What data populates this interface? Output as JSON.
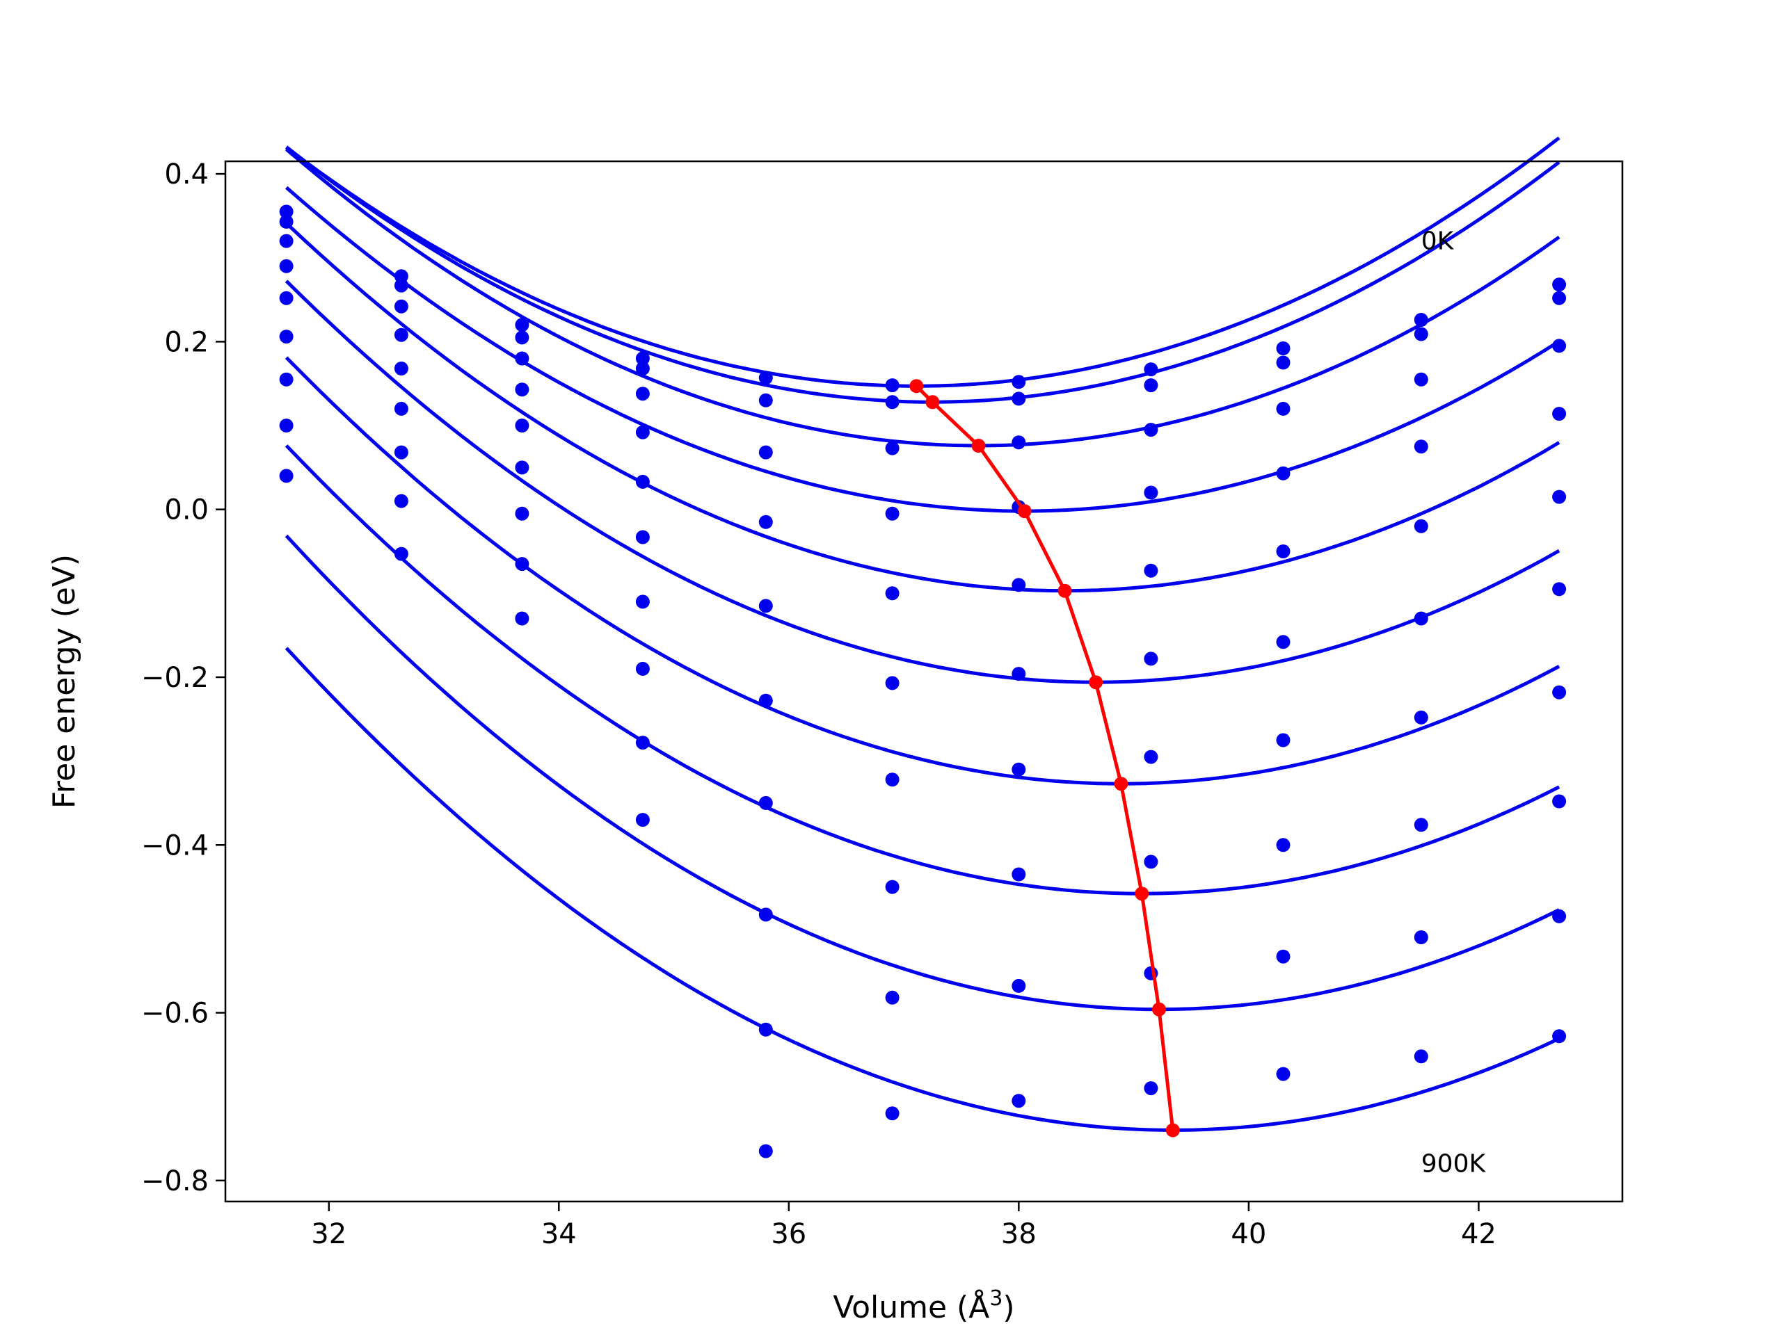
{
  "chart_data": {
    "type": "scatter",
    "title": "",
    "xlabel": "Volume (Å",
    "xlabel_sup": "3",
    "xlabel_close": ")",
    "ylabel": "Free energy (eV)",
    "xlim": [
      31.1,
      43.25
    ],
    "ylim": [
      -0.825,
      0.415
    ],
    "xticks": [
      32,
      34,
      36,
      38,
      40,
      42
    ],
    "yticks": [
      0.4,
      0.2,
      0.0,
      -0.2,
      -0.4,
      -0.6,
      -0.8
    ],
    "ytick_labels": [
      "0.4",
      "0.2",
      "0.0",
      "−0.2",
      "−0.4",
      "−0.6",
      "−0.8"
    ],
    "annotations": [
      {
        "text": "0K",
        "x": 41.5,
        "y": 0.32
      },
      {
        "text": "900K",
        "x": 41.5,
        "y": -0.78
      }
    ],
    "grid": false,
    "colors": {
      "points": "#0000ee",
      "curves": "#0000ee",
      "minima": "#ff0000"
    },
    "point_x": [
      31.63,
      32.63,
      33.68,
      34.73,
      35.8,
      36.9,
      38.0,
      39.15,
      40.3,
      41.5,
      42.7
    ],
    "series": [
      {
        "points_y": [
          0.355,
          0.278,
          0.22,
          0.18,
          0.157,
          0.148,
          0.152,
          0.167,
          0.192,
          0.226,
          0.268
        ],
        "curve": {
          "x_start": 31.63,
          "x_end": 42.7,
          "a": 0.00947,
          "x_min": 37.11,
          "y_min": 0.147
        },
        "min": [
          37.11,
          0.147
        ]
      },
      {
        "points_y": [
          0.343,
          0.267,
          0.205,
          0.168,
          0.13,
          0.128,
          0.132,
          0.148,
          0.175,
          0.209,
          0.252
        ],
        "curve": {
          "x_start": 31.63,
          "x_end": 42.7,
          "a": 0.00963,
          "x_min": 37.25,
          "y_min": 0.128
        },
        "min": [
          37.25,
          0.128
        ]
      },
      {
        "points_y": [
          0.32,
          0.242,
          0.18,
          0.138,
          0.068,
          0.073,
          0.08,
          0.095,
          0.12,
          0.155,
          0.195
        ],
        "curve": {
          "x_start": 31.63,
          "x_end": 42.7,
          "a": 0.00975,
          "x_min": 37.65,
          "y_min": 0.076
        },
        "min": [
          37.65,
          0.076
        ]
      },
      {
        "points_y": [
          0.29,
          0.208,
          0.143,
          0.092,
          -0.015,
          -0.005,
          0.003,
          0.02,
          0.043,
          0.075,
          0.114
        ],
        "curve": {
          "x_start": 31.63,
          "x_end": 42.7,
          "a": 0.00936,
          "x_min": 38.05,
          "y_min": -0.002
        },
        "min": [
          38.05,
          -0.002
        ]
      },
      {
        "points_y": [
          0.252,
          0.168,
          0.1,
          0.033,
          -0.115,
          -0.1,
          -0.09,
          -0.073,
          -0.05,
          -0.02,
          0.015
        ],
        "curve": {
          "x_start": 31.63,
          "x_end": 42.7,
          "a": 0.00956,
          "x_min": 38.4,
          "y_min": -0.097
        },
        "min": [
          38.4,
          -0.097
        ]
      },
      {
        "points_y": [
          0.206,
          0.12,
          0.05,
          -0.033,
          -0.228,
          -0.207,
          -0.196,
          -0.178,
          -0.158,
          -0.13,
          -0.095
        ],
        "curve": {
          "x_start": 31.63,
          "x_end": 42.7,
          "a": 0.00965,
          "x_min": 38.67,
          "y_min": -0.206
        },
        "min": [
          38.67,
          -0.206
        ]
      },
      {
        "points_y": [
          0.155,
          0.068,
          -0.005,
          -0.11,
          -0.35,
          -0.322,
          -0.31,
          -0.295,
          -0.275,
          -0.248,
          -0.218
        ],
        "curve": {
          "x_start": 31.63,
          "x_end": 42.7,
          "a": 0.00964,
          "x_min": 38.89,
          "y_min": -0.327
        },
        "min": [
          38.89,
          -0.327
        ]
      },
      {
        "points_y": [
          0.1,
          0.01,
          -0.065,
          -0.19,
          -0.483,
          -0.45,
          -0.435,
          -0.42,
          -0.4,
          -0.376,
          -0.348
        ],
        "curve": {
          "x_start": 31.63,
          "x_end": 42.7,
          "a": 0.00965,
          "x_min": 39.07,
          "y_min": -0.458
        },
        "min": [
          39.07,
          -0.458
        ]
      },
      {
        "points_y": [
          0.04,
          -0.053,
          -0.13,
          -0.278,
          -0.62,
          -0.582,
          -0.568,
          -0.553,
          -0.533,
          -0.51,
          -0.485
        ],
        "curve": {
          "x_start": 31.63,
          "x_end": 42.7,
          "a": 0.0098,
          "x_min": 39.22,
          "y_min": -0.596
        },
        "min": [
          39.22,
          -0.596
        ]
      },
      {
        "points_y": [
          null,
          null,
          null,
          -0.37,
          -0.765,
          -0.72,
          -0.705,
          -0.69,
          -0.673,
          -0.652,
          -0.628
        ],
        "curve": {
          "x_start": 31.63,
          "x_end": 42.7,
          "a": 0.00967,
          "x_min": 39.34,
          "y_min": -0.74
        },
        "min": [
          39.34,
          -0.74
        ]
      }
    ]
  }
}
